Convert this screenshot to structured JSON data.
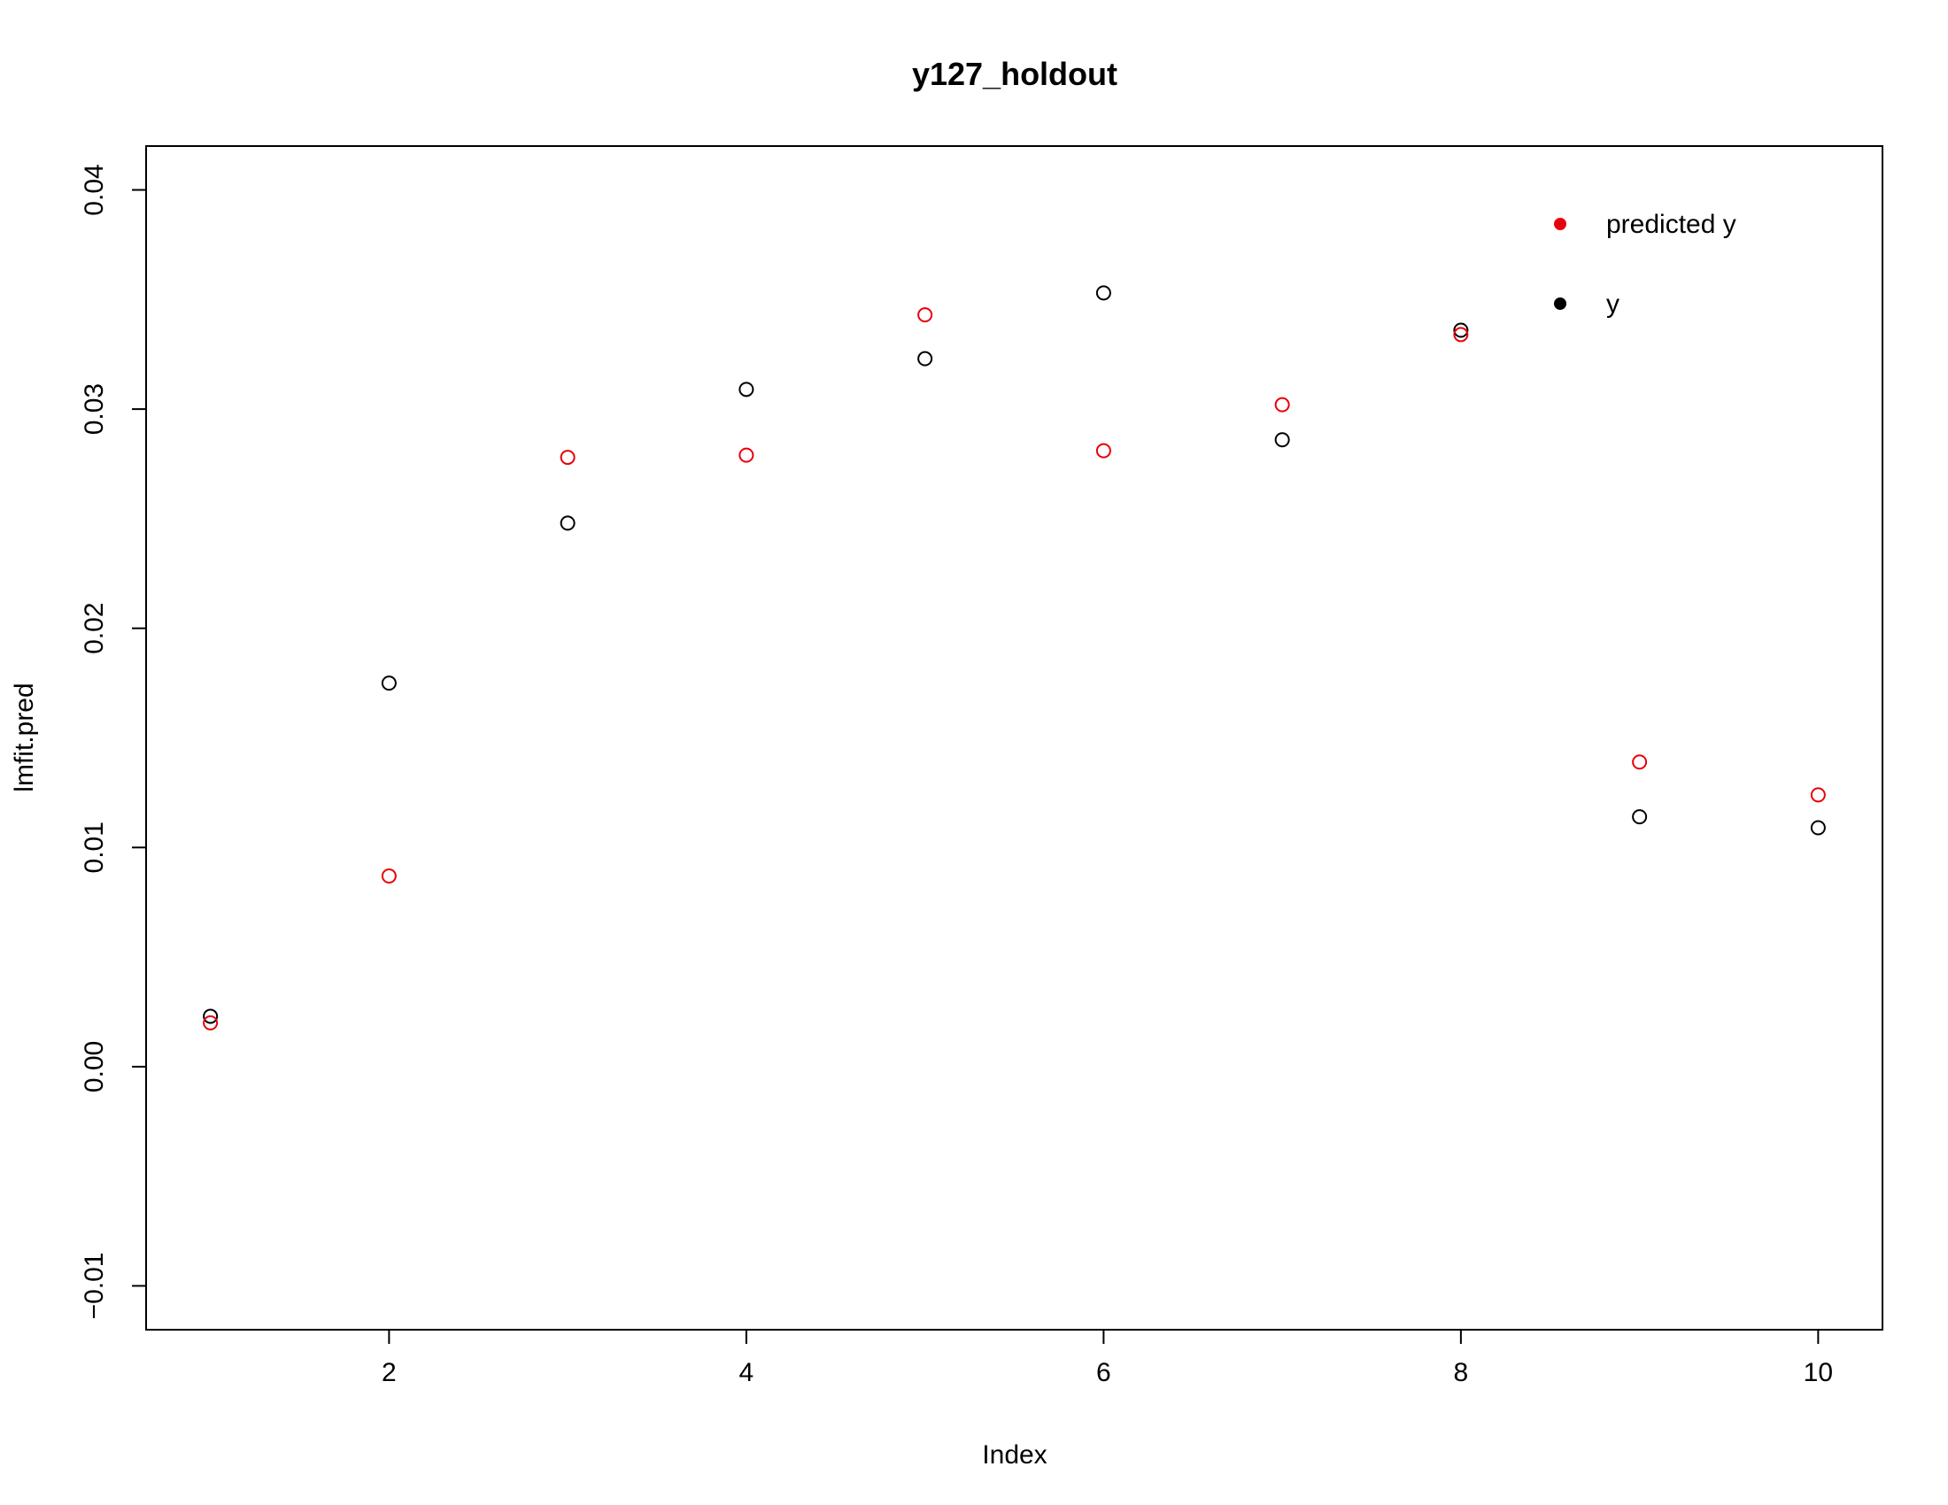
{
  "chart_data": {
    "type": "scatter",
    "title": "y127_holdout",
    "xlabel": "Index",
    "ylabel": "lmfit.pred",
    "xlim": [
      0.64,
      10.36
    ],
    "ylim": [
      -0.012,
      0.042
    ],
    "x_ticks": [
      2,
      4,
      6,
      8,
      10
    ],
    "x_tick_labels": [
      "2",
      "4",
      "6",
      "8",
      "10"
    ],
    "y_ticks": [
      -0.01,
      0.0,
      0.01,
      0.02,
      0.03,
      0.04
    ],
    "y_tick_labels": [
      "−0.01",
      "0.00",
      "0.01",
      "0.02",
      "0.03",
      "0.04"
    ],
    "grid": false,
    "legend_position": "top-right",
    "legend": [
      {
        "label": "predicted y",
        "color": "#e8000b"
      },
      {
        "label": "y",
        "color": "#000000"
      }
    ],
    "x": [
      1,
      2,
      3,
      4,
      5,
      6,
      7,
      8,
      9,
      10
    ],
    "series": [
      {
        "name": "y",
        "color": "#000000",
        "marker": "open-circle",
        "values": [
          0.0023,
          0.0175,
          0.0248,
          0.0309,
          0.0323,
          0.0353,
          0.0286,
          0.0336,
          0.0114,
          0.0109
        ]
      },
      {
        "name": "predicted y",
        "color": "#e8000b",
        "marker": "open-circle",
        "values": [
          0.002,
          0.0087,
          0.0278,
          0.0279,
          0.0343,
          0.0281,
          0.0302,
          0.0334,
          0.0139,
          0.0124
        ]
      }
    ]
  }
}
